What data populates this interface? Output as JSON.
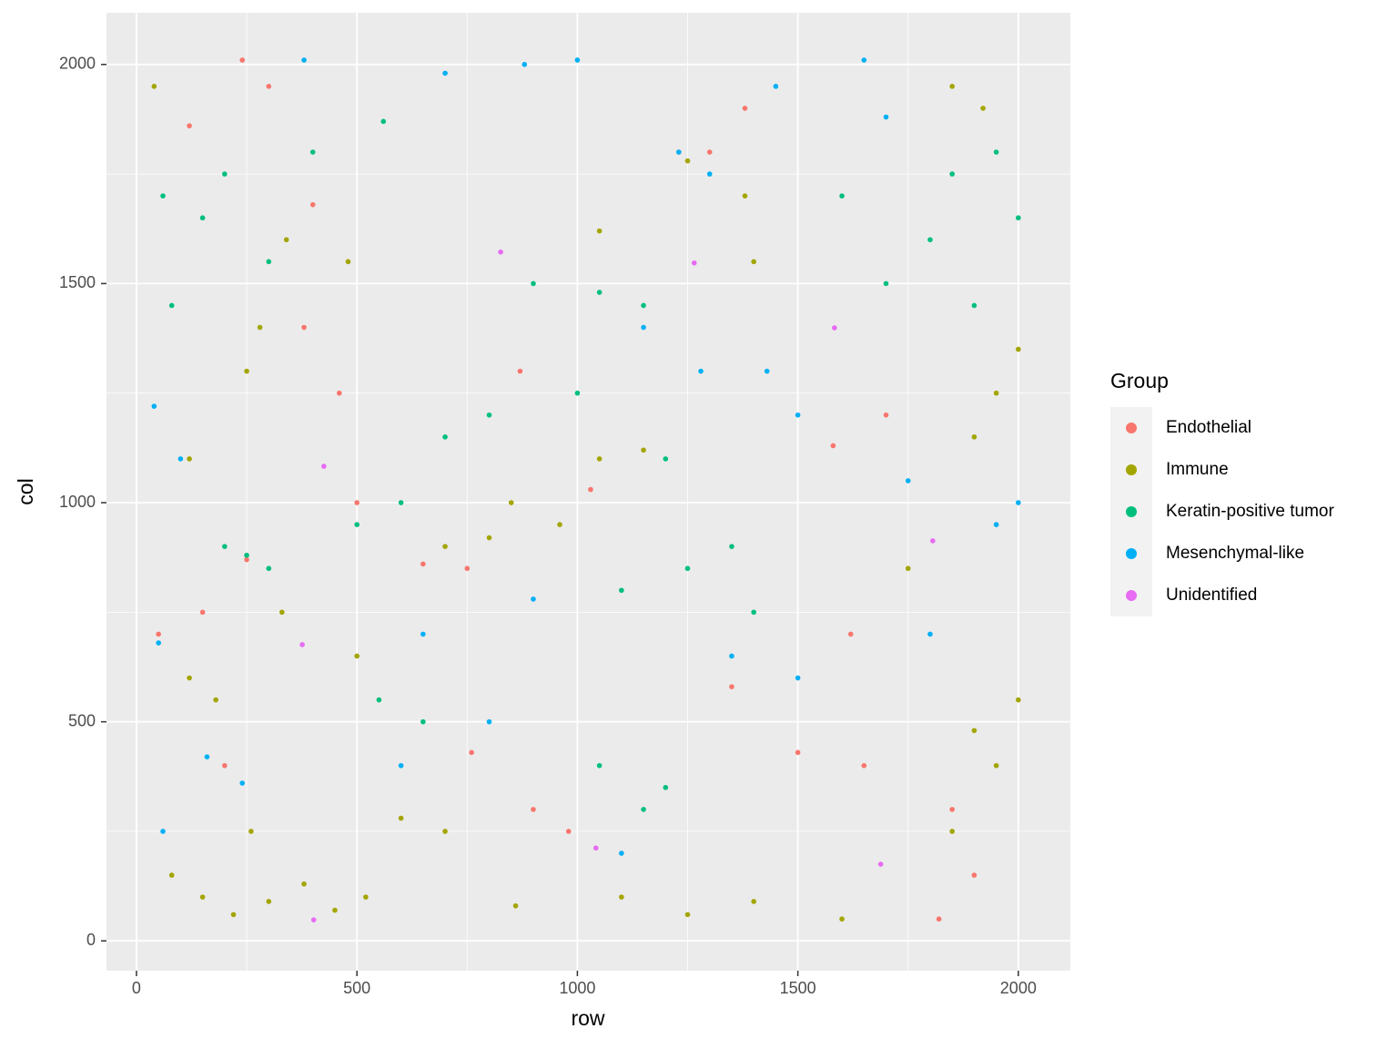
{
  "chart_data": {
    "type": "scatter",
    "xlabel": "row",
    "ylabel": "col",
    "legend_title": "Group",
    "legend": "right",
    "grid": true,
    "xlim": [
      -68,
      2118
    ],
    "ylim": [
      -68,
      2118
    ],
    "xticks": [
      0,
      500,
      1000,
      1500,
      2000
    ],
    "yticks": [
      0,
      500,
      1000,
      1500,
      2000
    ],
    "series": [
      {
        "name": "Endothelial",
        "color": "#F8766D",
        "x": [
          120,
          240,
          300,
          380,
          400,
          460,
          500,
          650,
          750,
          870,
          1030,
          1230,
          1300,
          1380,
          1580,
          1620,
          1700,
          1850,
          1900,
          1820,
          150,
          200,
          250,
          760,
          980,
          900,
          1500,
          1650,
          1350,
          50
        ],
        "values": [
          1860,
          2010,
          1950,
          1400,
          1680,
          1250,
          1000,
          860,
          850,
          1300,
          1030,
          1800,
          1800,
          1900,
          1130,
          700,
          1200,
          300,
          150,
          50,
          750,
          400,
          870,
          430,
          250,
          300,
          430,
          400,
          580,
          700
        ]
      },
      {
        "name": "Immune",
        "color": "#A3A500",
        "x": [
          80,
          150,
          220,
          300,
          380,
          450,
          520,
          260,
          120,
          180,
          600,
          700,
          860,
          1100,
          1250,
          1400,
          1850,
          1950,
          2000,
          1900,
          1950,
          1900,
          2000,
          280,
          250,
          340,
          120,
          850,
          960,
          1050,
          1150,
          800,
          1400,
          1380,
          1850,
          1920,
          1250,
          480,
          1050,
          40,
          700,
          1600,
          1750,
          330,
          500
        ],
        "values": [
          150,
          100,
          60,
          90,
          130,
          70,
          100,
          250,
          600,
          550,
          280,
          250,
          80,
          100,
          60,
          90,
          250,
          400,
          550,
          480,
          1250,
          1150,
          1350,
          1400,
          1300,
          1600,
          1100,
          1000,
          950,
          1100,
          1120,
          920,
          1550,
          1700,
          1950,
          1900,
          1780,
          1550,
          1620,
          1950,
          900,
          50,
          850,
          750,
          650
        ]
      },
      {
        "name": "Keratin-positive tumor",
        "color": "#00BF7D",
        "x": [
          60,
          150,
          200,
          80,
          300,
          400,
          560,
          250,
          300,
          200,
          500,
          600,
          700,
          800,
          1000,
          1200,
          1100,
          1250,
          1350,
          1400,
          1200,
          1150,
          1050,
          1700,
          1800,
          1850,
          1950,
          2000,
          1900,
          1600,
          550,
          650,
          900,
          1050,
          1150
        ],
        "values": [
          1700,
          1650,
          1750,
          1450,
          1550,
          1800,
          1870,
          880,
          850,
          900,
          950,
          1000,
          1150,
          1200,
          1250,
          1100,
          800,
          850,
          900,
          750,
          350,
          300,
          400,
          1500,
          1600,
          1750,
          1800,
          1650,
          1450,
          1700,
          550,
          500,
          1500,
          1480,
          1450
        ]
      },
      {
        "name": "Mesenchymal-like",
        "color": "#00B0F6",
        "x": [
          40,
          50,
          60,
          100,
          160,
          240,
          380,
          700,
          880,
          1000,
          1230,
          1300,
          1150,
          1280,
          1430,
          1500,
          1750,
          2000,
          1950,
          1800,
          1500,
          1350,
          1100,
          900,
          800,
          600,
          1650,
          1700,
          650,
          1450
        ],
        "values": [
          1220,
          680,
          250,
          1100,
          420,
          360,
          2010,
          1980,
          2000,
          2010,
          1800,
          1750,
          1400,
          1300,
          1300,
          1200,
          1050,
          1000,
          950,
          700,
          600,
          650,
          200,
          780,
          500,
          400,
          2010,
          1880,
          700,
          1950
        ]
      },
      {
        "name": "Unidentified",
        "color": "#E76BF3",
        "x": [
          826,
          1265,
          1583,
          425,
          1806,
          376,
          1042,
          402,
          1688
        ],
        "values": [
          1572,
          1547,
          1399,
          1083,
          913,
          676,
          212,
          48,
          175
        ]
      }
    ]
  }
}
